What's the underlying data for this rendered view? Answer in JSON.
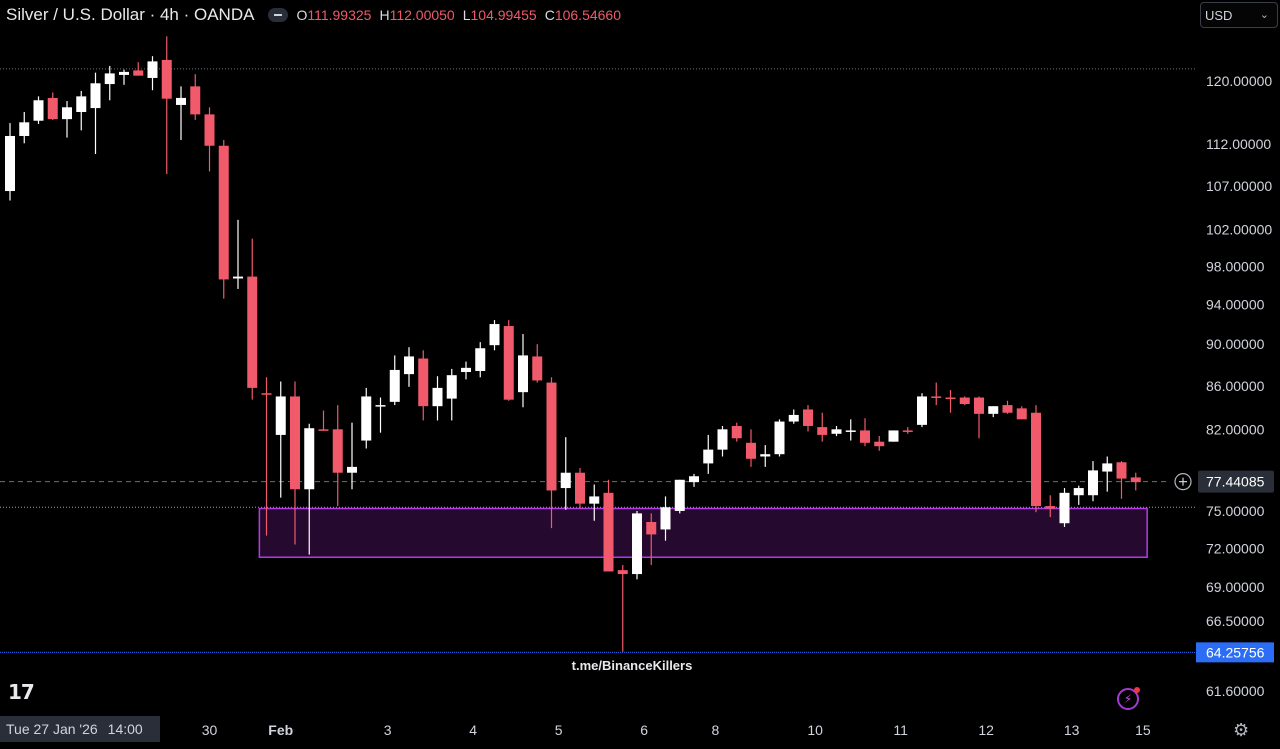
{
  "header": {
    "title": "Silver / U.S. Dollar · 4h · OANDA",
    "open_label": "O",
    "open_value": "111.99325",
    "high_label": "H",
    "high_value": "112.00050",
    "low_label": "L",
    "low_value": "104.99455",
    "close_label": "C",
    "close_value": "106.54660"
  },
  "currency_select": {
    "value": "USD"
  },
  "watermark": "t.me/BinanceKillers",
  "colors": {
    "background": "#000000",
    "up": "#ffffff",
    "down": "#f05a6a",
    "zone_border": "#b23be6",
    "zone_fill": "#2a0a33",
    "current_price_badge": "#2b6ef5"
  },
  "icons": {
    "logo": "tradingview-logo-icon",
    "bolt": "lightning-icon",
    "settings": "gear-icon",
    "add": "plus-circle-icon",
    "collapse": "minus-icon"
  },
  "crosshair_badge": {
    "date": "Tue 27 Jan '26",
    "time": "14:00"
  },
  "chart_data": {
    "type": "candlestick",
    "title": "Silver / U.S. Dollar · 4h · OANDA",
    "y_scale": "log",
    "y_range": [
      59.5,
      126.0
    ],
    "y_ticks": [
      "120.00000",
      "112.00000",
      "107.00000",
      "102.00000",
      "98.00000",
      "94.00000",
      "90.00000",
      "86.00000",
      "82.00000",
      "75.00000",
      "72.00000",
      "69.00000",
      "66.50000",
      "61.60000"
    ],
    "y_tick_values": [
      120,
      112,
      107,
      102,
      98,
      94,
      90,
      86,
      82,
      75,
      72,
      69,
      66.5,
      61.6
    ],
    "x_ticks": [
      {
        "label": "30",
        "index": 14.0
      },
      {
        "label": "Feb",
        "index": 19.0
      },
      {
        "label": "3",
        "index": 26.5
      },
      {
        "label": "4",
        "index": 32.5
      },
      {
        "label": "5",
        "index": 38.5
      },
      {
        "label": "6",
        "index": 44.5
      },
      {
        "label": "8",
        "index": 49.5
      },
      {
        "label": "10",
        "index": 56.5
      },
      {
        "label": "11",
        "index": 62.5
      },
      {
        "label": "12",
        "index": 68.5
      },
      {
        "label": "13",
        "index": 74.5
      },
      {
        "label": "15",
        "index": 79.5
      }
    ],
    "candles": [
      {
        "o": 106.4,
        "h": 114.6,
        "l": 105.3,
        "c": 113.0
      },
      {
        "o": 113.0,
        "h": 116.0,
        "l": 112.1,
        "c": 114.7
      },
      {
        "o": 114.9,
        "h": 118.0,
        "l": 114.5,
        "c": 117.5
      },
      {
        "o": 117.8,
        "h": 118.5,
        "l": 115.0,
        "c": 115.1
      },
      {
        "o": 115.1,
        "h": 117.4,
        "l": 112.8,
        "c": 116.6
      },
      {
        "o": 116.0,
        "h": 118.7,
        "l": 113.7,
        "c": 118.0
      },
      {
        "o": 116.5,
        "h": 121.1,
        "l": 110.8,
        "c": 119.7
      },
      {
        "o": 119.6,
        "h": 122.0,
        "l": 117.5,
        "c": 121.0
      },
      {
        "o": 120.8,
        "h": 121.5,
        "l": 119.5,
        "c": 121.2
      },
      {
        "o": 121.4,
        "h": 122.5,
        "l": 120.8,
        "c": 120.7
      },
      {
        "o": 120.4,
        "h": 123.3,
        "l": 118.8,
        "c": 122.6
      },
      {
        "o": 122.8,
        "h": 126.0,
        "l": 108.4,
        "c": 117.7
      },
      {
        "o": 116.9,
        "h": 119.3,
        "l": 112.5,
        "c": 117.8
      },
      {
        "o": 119.3,
        "h": 120.9,
        "l": 115.0,
        "c": 115.7
      },
      {
        "o": 115.7,
        "h": 116.6,
        "l": 108.7,
        "c": 111.8
      },
      {
        "o": 111.8,
        "h": 112.5,
        "l": 94.6,
        "c": 96.6
      },
      {
        "o": 96.7,
        "h": 103.1,
        "l": 95.6,
        "c": 96.9
      },
      {
        "o": 96.9,
        "h": 101.0,
        "l": 84.7,
        "c": 85.8
      },
      {
        "o": 85.3,
        "h": 86.8,
        "l": 73.0,
        "c": 85.2
      },
      {
        "o": 81.5,
        "h": 86.4,
        "l": 76.1,
        "c": 85.0
      },
      {
        "o": 85.0,
        "h": 86.4,
        "l": 72.3,
        "c": 76.8
      },
      {
        "o": 76.8,
        "h": 82.5,
        "l": 71.5,
        "c": 82.1
      },
      {
        "o": 82.0,
        "h": 83.7,
        "l": 81.9,
        "c": 81.9
      },
      {
        "o": 82.0,
        "h": 84.2,
        "l": 75.4,
        "c": 78.2
      },
      {
        "o": 78.2,
        "h": 82.6,
        "l": 76.8,
        "c": 78.7
      },
      {
        "o": 81.0,
        "h": 85.8,
        "l": 80.3,
        "c": 85.0
      },
      {
        "o": 84.1,
        "h": 84.9,
        "l": 81.7,
        "c": 84.2
      },
      {
        "o": 84.5,
        "h": 88.9,
        "l": 84.2,
        "c": 87.5
      },
      {
        "o": 87.1,
        "h": 89.7,
        "l": 85.9,
        "c": 88.8
      },
      {
        "o": 88.6,
        "h": 89.4,
        "l": 82.8,
        "c": 84.1
      },
      {
        "o": 84.1,
        "h": 86.9,
        "l": 82.8,
        "c": 85.8
      },
      {
        "o": 84.8,
        "h": 87.6,
        "l": 82.8,
        "c": 87.0
      },
      {
        "o": 87.3,
        "h": 88.3,
        "l": 86.6,
        "c": 87.7
      },
      {
        "o": 87.4,
        "h": 90.2,
        "l": 86.8,
        "c": 89.6
      },
      {
        "o": 89.9,
        "h": 92.4,
        "l": 89.4,
        "c": 92.0
      },
      {
        "o": 91.8,
        "h": 92.4,
        "l": 84.6,
        "c": 84.7
      },
      {
        "o": 85.4,
        "h": 91.0,
        "l": 84.0,
        "c": 88.9
      },
      {
        "o": 88.8,
        "h": 90.0,
        "l": 86.3,
        "c": 86.5
      },
      {
        "o": 86.3,
        "h": 86.8,
        "l": 73.6,
        "c": 76.7
      },
      {
        "o": 76.9,
        "h": 81.3,
        "l": 75.1,
        "c": 78.2
      },
      {
        "o": 78.2,
        "h": 78.6,
        "l": 75.2,
        "c": 75.6
      },
      {
        "o": 75.6,
        "h": 77.2,
        "l": 74.2,
        "c": 76.2
      },
      {
        "o": 76.5,
        "h": 77.6,
        "l": 70.2,
        "c": 70.2
      },
      {
        "o": 70.3,
        "h": 70.7,
        "l": 64.3,
        "c": 70.0
      },
      {
        "o": 70.0,
        "h": 75.0,
        "l": 69.6,
        "c": 74.8
      },
      {
        "o": 74.1,
        "h": 74.8,
        "l": 70.7,
        "c": 73.1
      },
      {
        "o": 73.5,
        "h": 76.2,
        "l": 72.6,
        "c": 75.3
      },
      {
        "o": 75.0,
        "h": 77.6,
        "l": 74.8,
        "c": 77.6
      },
      {
        "o": 77.4,
        "h": 78.1,
        "l": 77.0,
        "c": 77.9
      },
      {
        "o": 79.0,
        "h": 81.5,
        "l": 78.1,
        "c": 80.2
      },
      {
        "o": 80.2,
        "h": 82.3,
        "l": 79.6,
        "c": 82.0
      },
      {
        "o": 82.3,
        "h": 82.6,
        "l": 80.9,
        "c": 81.2
      },
      {
        "o": 80.8,
        "h": 82.0,
        "l": 78.7,
        "c": 79.4
      },
      {
        "o": 79.6,
        "h": 80.6,
        "l": 78.7,
        "c": 79.8
      },
      {
        "o": 79.8,
        "h": 82.9,
        "l": 79.6,
        "c": 82.7
      },
      {
        "o": 82.7,
        "h": 83.8,
        "l": 82.5,
        "c": 83.3
      },
      {
        "o": 83.8,
        "h": 84.2,
        "l": 81.8,
        "c": 82.3
      },
      {
        "o": 82.2,
        "h": 83.5,
        "l": 80.9,
        "c": 81.5
      },
      {
        "o": 81.6,
        "h": 82.3,
        "l": 81.4,
        "c": 82.0
      },
      {
        "o": 81.8,
        "h": 82.9,
        "l": 81.0,
        "c": 81.9
      },
      {
        "o": 81.9,
        "h": 83.0,
        "l": 80.5,
        "c": 80.8
      },
      {
        "o": 80.9,
        "h": 81.4,
        "l": 80.1,
        "c": 80.5
      },
      {
        "o": 80.9,
        "h": 81.9,
        "l": 80.9,
        "c": 81.9
      },
      {
        "o": 81.9,
        "h": 82.2,
        "l": 81.6,
        "c": 81.8
      },
      {
        "o": 82.4,
        "h": 85.3,
        "l": 82.2,
        "c": 85.0
      },
      {
        "o": 85.0,
        "h": 86.3,
        "l": 84.2,
        "c": 84.9
      },
      {
        "o": 84.9,
        "h": 85.6,
        "l": 83.5,
        "c": 84.8
      },
      {
        "o": 84.9,
        "h": 85.0,
        "l": 84.2,
        "c": 84.3
      },
      {
        "o": 84.9,
        "h": 85.0,
        "l": 81.2,
        "c": 83.4
      },
      {
        "o": 83.4,
        "h": 84.1,
        "l": 83.1,
        "c": 84.1
      },
      {
        "o": 84.2,
        "h": 84.6,
        "l": 83.4,
        "c": 83.5
      },
      {
        "o": 83.9,
        "h": 84.1,
        "l": 83.0,
        "c": 82.9
      },
      {
        "o": 83.5,
        "h": 84.2,
        "l": 74.9,
        "c": 75.4
      },
      {
        "o": 75.4,
        "h": 76.3,
        "l": 74.5,
        "c": 75.2
      },
      {
        "o": 74.0,
        "h": 76.9,
        "l": 73.7,
        "c": 76.5
      },
      {
        "o": 76.3,
        "h": 77.1,
        "l": 75.5,
        "c": 76.9
      },
      {
        "o": 76.3,
        "h": 79.2,
        "l": 75.8,
        "c": 78.4
      },
      {
        "o": 78.3,
        "h": 79.6,
        "l": 76.6,
        "c": 79.0
      },
      {
        "o": 79.1,
        "h": 79.2,
        "l": 76.0,
        "c": 77.7
      },
      {
        "o": 77.8,
        "h": 78.2,
        "l": 76.7,
        "c": 77.4
      }
    ],
    "demand_zone": {
      "top": 75.2,
      "bottom": 71.3,
      "start_index": 17.5,
      "end_index": 79.8
    },
    "reference_lines": {
      "dotted_high": 121.6,
      "dotted_zone_top": 75.3,
      "current_price": 77.44085,
      "support_low": 64.25756
    },
    "price_labels": {
      "current": "77.44085",
      "support": "64.25756"
    }
  }
}
